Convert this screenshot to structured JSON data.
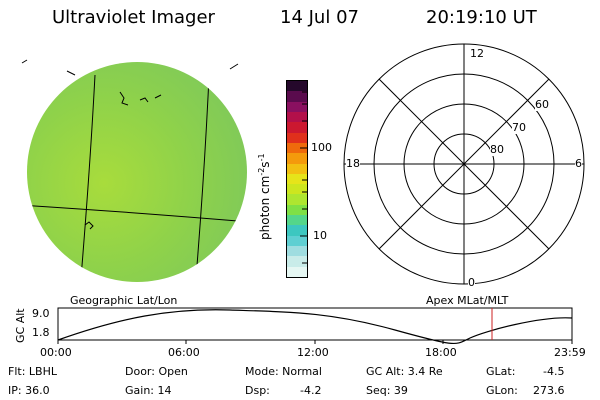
{
  "header": {
    "title": "Ultraviolet Imager",
    "date": "14 Jul 07",
    "time": "20:19:10 UT"
  },
  "colorbar": {
    "unit_label": "photon cm",
    "unit_exp1": "-2",
    "unit_s": "s",
    "unit_exp2": "-1",
    "ticks": [
      "100",
      "10"
    ],
    "colors": [
      "#e6f7f3",
      "#c9ece9",
      "#9fdde0",
      "#5fcfd2",
      "#3dc7c0",
      "#54d68a",
      "#7fe045",
      "#aee630",
      "#cde61f",
      "#e6e41a",
      "#f2c012",
      "#f49a0c",
      "#ef6a0c",
      "#e0301c",
      "#cc1830",
      "#b3104a",
      "#8a1060",
      "#5a0b4d",
      "#25082b"
    ]
  },
  "polar": {
    "labels_mlt": {
      "top": "12",
      "left": "18",
      "right": "6",
      "bottom": "0"
    },
    "labels_lat": [
      "60",
      "70",
      "80"
    ],
    "caption": "Apex  MLat/MLT"
  },
  "globe": {
    "caption": "Geographic Lat/Lon",
    "fill": "#9cd640"
  },
  "timeline": {
    "ylabel": "GC Alt",
    "yticks": [
      "9.0",
      "1.8"
    ],
    "xticks": [
      "00:00",
      "06:00",
      "12:00",
      "18:00",
      "23:59"
    ],
    "marker_color": "#cc2222"
  },
  "status": {
    "flt": "Flt: LBHL",
    "ip": "IP: 36.0",
    "door": "Door: Open",
    "gain": "Gain: 14",
    "mode": "Mode: Normal",
    "dsp_label": "Dsp:",
    "dsp_value": "-4.2",
    "gcalt": "GC Alt: 3.4 Re",
    "seq": "Seq: 39",
    "glat_label": "GLat:",
    "glat_value": "-4.5",
    "glon_label": "GLon:",
    "glon_value": "273.6"
  }
}
